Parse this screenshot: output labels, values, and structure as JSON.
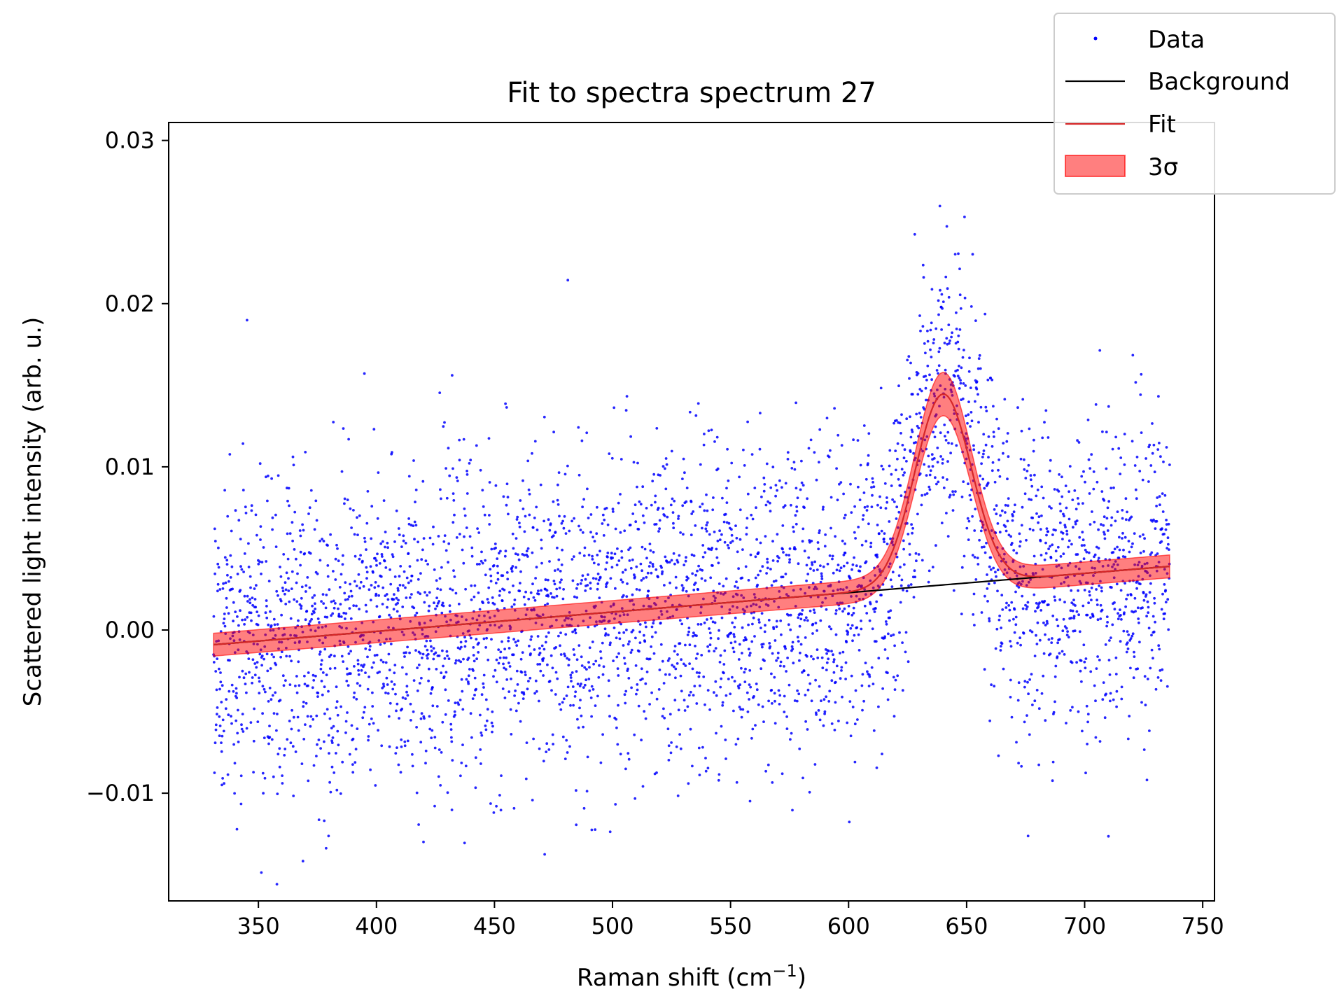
{
  "chart_data": {
    "type": "scatter",
    "title": "Fit to spectra spectrum 27",
    "xlabel": "Raman shift (cm",
    "xlabel_sup": "−1",
    "xlabel_end": ")",
    "ylabel": "Scattered light intensity (arb. u.)",
    "xlim": [
      312,
      755
    ],
    "ylim": [
      -0.0166,
      0.0311
    ],
    "x_ticks": [
      350,
      400,
      450,
      500,
      550,
      600,
      650,
      700,
      750
    ],
    "x_tick_labels": [
      "350",
      "400",
      "450",
      "500",
      "550",
      "600",
      "650",
      "700",
      "750"
    ],
    "y_ticks": [
      -0.01,
      0.0,
      0.01,
      0.02,
      0.03
    ],
    "y_tick_labels": [
      "−0.01",
      "0.00",
      "0.01",
      "0.02",
      "0.03"
    ],
    "grid": false,
    "legend_placement": "top-right",
    "x_range": [
      331,
      736
    ],
    "background": {
      "x": [
        331,
        736
      ],
      "y": [
        -0.0009,
        0.0039
      ]
    },
    "peak": {
      "center": 640,
      "height": 0.0117,
      "fwhm": 28
    },
    "band_halfwidth": 0.0007,
    "series": [
      {
        "name": "Data",
        "kind": "points",
        "color": "#0000ff",
        "n_points": 4000,
        "noise_sd": 0.0048
      },
      {
        "name": "Background",
        "kind": "line",
        "color": "#000000"
      },
      {
        "name": "Fit",
        "kind": "line",
        "color": "#d62728"
      },
      {
        "name": "3σ",
        "kind": "band",
        "color": "#ff0000"
      }
    ]
  }
}
